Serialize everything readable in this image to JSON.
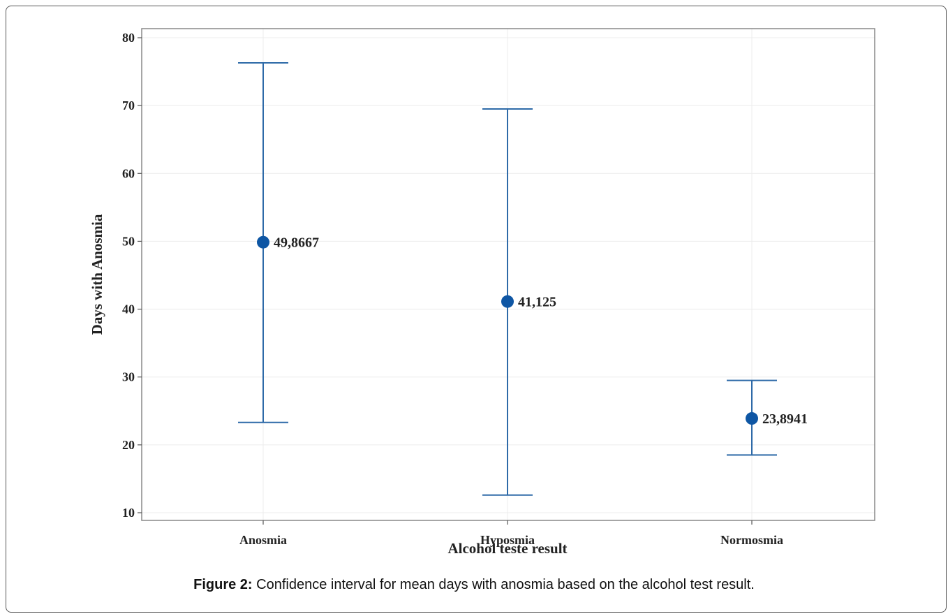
{
  "chart_data": {
    "type": "errorbar",
    "categories": [
      "Anosmia",
      "Hyposmia",
      "Normosmia"
    ],
    "means": [
      49.8667,
      41.125,
      23.8941
    ],
    "lower": [
      23.3,
      12.6,
      18.5
    ],
    "upper": [
      76.3,
      69.5,
      29.5
    ],
    "mean_labels": [
      "49,8667",
      "41,125",
      "23,8941"
    ],
    "xlabel": "Alcohol teste result",
    "ylabel": "Days with Anosmia",
    "ylim": [
      10,
      80
    ],
    "yticks": [
      10,
      20,
      30,
      40,
      50,
      60,
      70,
      80
    ],
    "grid": true,
    "color": "#2e6aa8",
    "marker_color": "#0e56a4"
  },
  "caption": {
    "label": "Figure 2:",
    "text": " Confidence interval for mean days with anosmia based on the alcohol test result."
  }
}
